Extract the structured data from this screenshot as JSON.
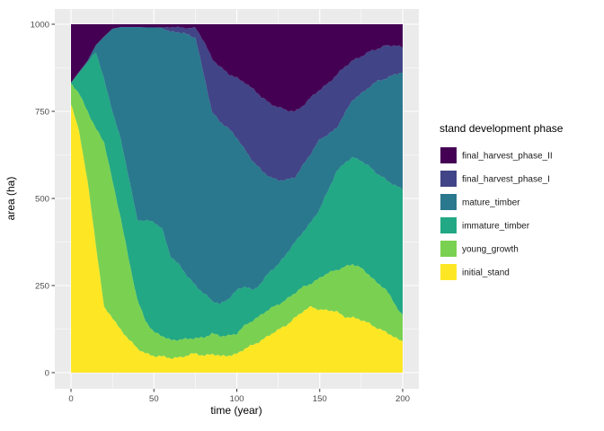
{
  "figure": {
    "background": "#FFFFFF",
    "panel_background": "#EBEBEB",
    "grid_major_color": "#FFFFFF",
    "grid_minor_color": "#FFFFFF",
    "axis_text_color": "#4D4D4D",
    "axis_title_color": "#000000",
    "tick_mark_color": "#333333"
  },
  "axes": {
    "x": {
      "title": "time (year)",
      "ticks": [
        0,
        50,
        100,
        150,
        200
      ],
      "range": [
        0,
        200
      ],
      "minor_ticks": [
        25,
        75,
        125,
        175
      ]
    },
    "y": {
      "title": "area (ha)",
      "ticks": [
        0,
        250,
        500,
        750,
        1000
      ],
      "range": [
        0,
        1000
      ],
      "minor_ticks": [
        125,
        375,
        625,
        875
      ]
    }
  },
  "legend": {
    "title": "stand development phase",
    "items": [
      {
        "label": "final_harvest_phase_II",
        "color": "#440154"
      },
      {
        "label": "final_harvest_phase_I",
        "color": "#414487"
      },
      {
        "label": "mature_timber",
        "color": "#2A788E"
      },
      {
        "label": "immature_timber",
        "color": "#22A884"
      },
      {
        "label": "young_growth",
        "color": "#7AD151"
      },
      {
        "label": "initial_stand",
        "color": "#FDE725"
      }
    ]
  },
  "chart_data": {
    "type": "area",
    "stacked": true,
    "total": 1000,
    "title": "",
    "xlabel": "time (year)",
    "ylabel": "area (ha)",
    "xlim": [
      0,
      200
    ],
    "ylim": [
      0,
      1000
    ],
    "grid": true,
    "legend_position": "right",
    "x": [
      0,
      5,
      10,
      15,
      20,
      25,
      30,
      35,
      40,
      45,
      50,
      55,
      60,
      65,
      70,
      75,
      80,
      85,
      90,
      95,
      100,
      105,
      110,
      115,
      120,
      125,
      130,
      135,
      140,
      145,
      150,
      155,
      160,
      165,
      170,
      175,
      180,
      185,
      190,
      195,
      200
    ],
    "series": [
      {
        "name": "initial_stand",
        "color": "#FDE725",
        "values": [
          770,
          690,
          550,
          370,
          185,
          158,
          124,
          95,
          68,
          57,
          48,
          45,
          42,
          45,
          48,
          55,
          50,
          54,
          46,
          50,
          55,
          68,
          80,
          95,
          108,
          122,
          138,
          158,
          175,
          190,
          182,
          178,
          175,
          162,
          158,
          150,
          142,
          128,
          115,
          102,
          90
        ]
      },
      {
        "name": "young_growth",
        "color": "#7AD151",
        "values": [
          60,
          110,
          202,
          330,
          475,
          394,
          321,
          225,
          142,
          93,
          67,
          60,
          53,
          50,
          47,
          45,
          52,
          57,
          59,
          58,
          57,
          67,
          72,
          73,
          74,
          74,
          74,
          70,
          70,
          68,
          90,
          107,
          120,
          143,
          152,
          150,
          140,
          127,
          123,
          98,
          75
        ]
      },
      {
        "name": "immature_timber",
        "color": "#22A884",
        "values": [
          2,
          62,
          138,
          220,
          180,
          200,
          223,
          236,
          230,
          287,
          316,
          308,
          241,
          214,
          183,
          152,
          126,
          94,
          93,
          105,
          123,
          113,
          86,
          90,
          108,
          116,
          130,
          144,
          160,
          177,
          196,
          237,
          283,
          297,
          306,
          310,
          310,
          313,
          316,
          340,
          360
        ]
      },
      {
        "name": "mature_timber",
        "color": "#2A788E",
        "values": [
          0,
          2,
          5,
          20,
          125,
          235,
          324,
          436,
          552,
          554,
          560,
          577,
          642,
          667,
          694,
          711,
          628,
          543,
          524,
          487,
          438,
          392,
          368,
          320,
          272,
          242,
          210,
          188,
          193,
          197,
          200,
          163,
          124,
          140,
          168,
          192,
          228,
          268,
          292,
          316,
          336
        ]
      },
      {
        "name": "final_harvest_phase_I",
        "color": "#414487",
        "values": [
          0,
          0,
          0,
          0,
          0,
          0,
          0,
          0,
          0,
          0,
          0,
          1,
          13,
          15,
          18,
          27,
          95,
          155,
          156,
          156,
          173,
          194,
          206,
          212,
          212,
          208,
          200,
          190,
          170,
          158,
          144,
          147,
          151,
          134,
          114,
          106,
          100,
          94,
          95,
          82,
          72
        ]
      },
      {
        "name": "final_harvest_phase_II",
        "color": "#440154",
        "values": [
          168,
          136,
          95,
          60,
          35,
          13,
          8,
          8,
          8,
          9,
          9,
          9,
          9,
          9,
          10,
          10,
          49,
          97,
          122,
          144,
          154,
          166,
          188,
          210,
          226,
          238,
          248,
          250,
          232,
          210,
          188,
          168,
          147,
          124,
          102,
          92,
          80,
          70,
          59,
          62,
          67
        ]
      }
    ]
  }
}
